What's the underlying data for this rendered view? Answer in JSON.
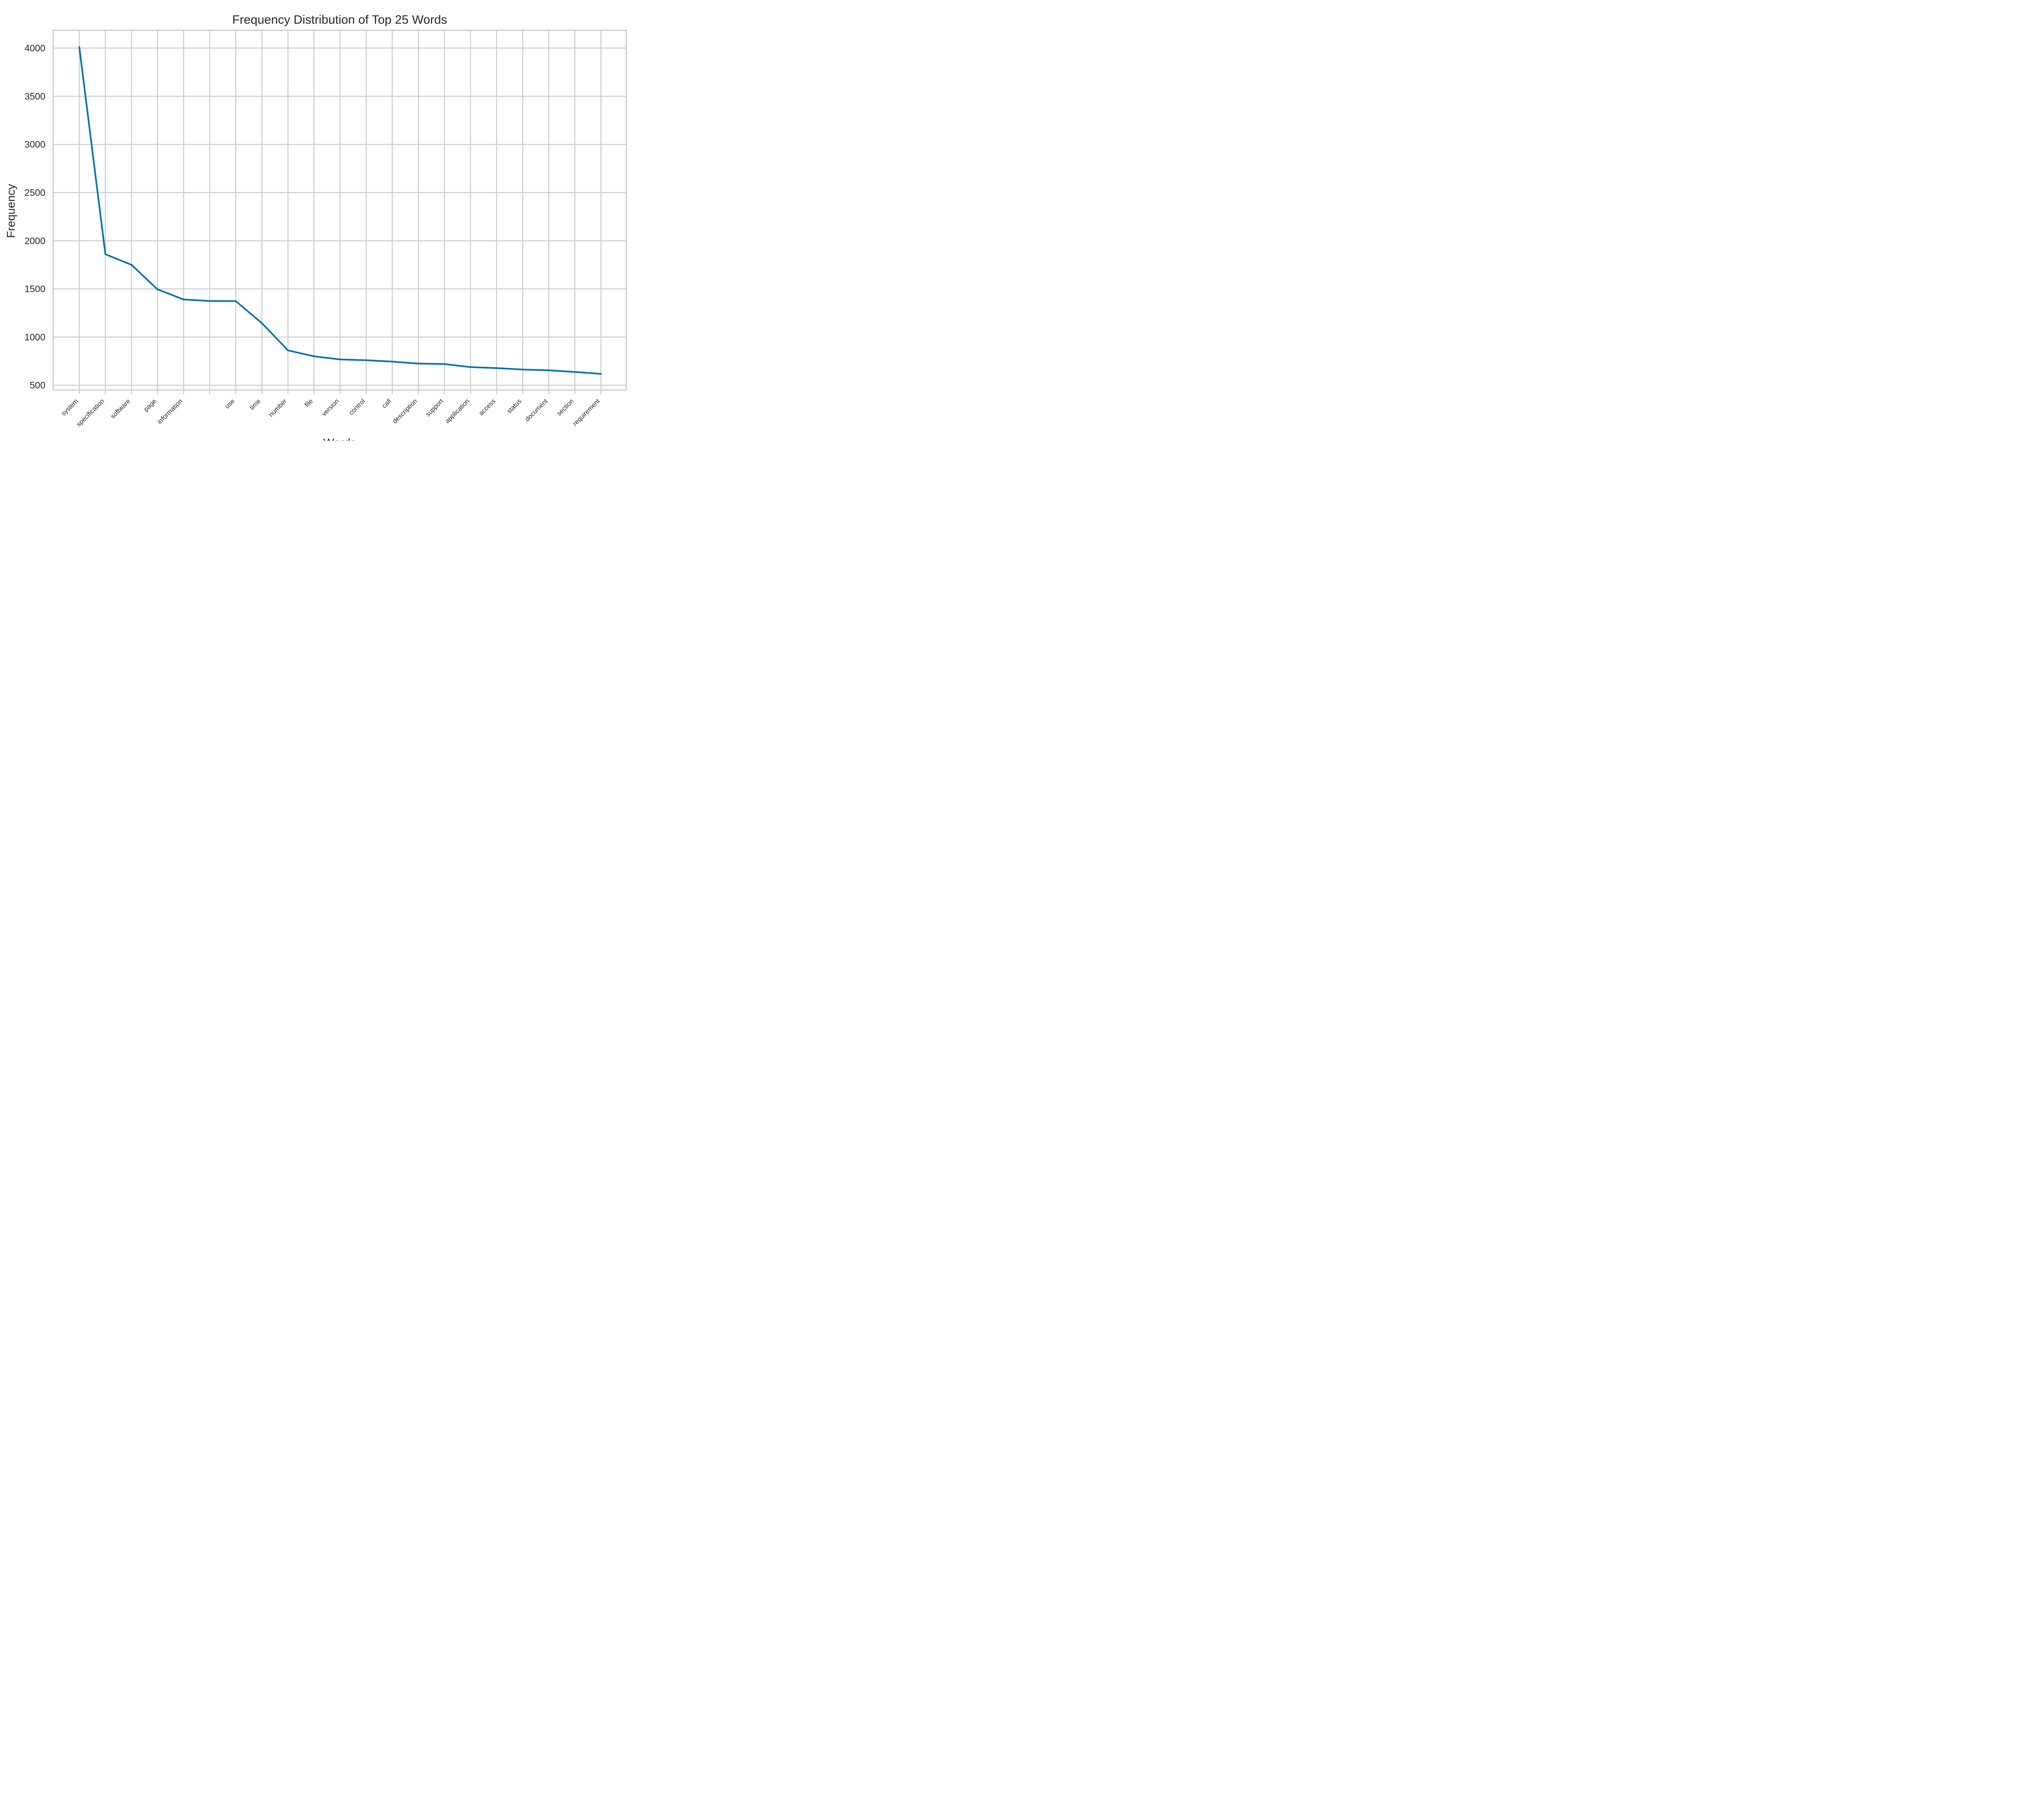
{
  "chart_data": {
    "type": "line",
    "title": "Frequency Distribution of Top 25 Words",
    "xlabel": "Words",
    "ylabel": "Frequency",
    "categories": [
      "system",
      "specification",
      "software",
      "page",
      "information",
      "",
      "use",
      "time",
      "number",
      "file",
      "version",
      "control",
      "call",
      "description",
      "support",
      "application",
      "access",
      "status",
      "document",
      "section",
      "requirement"
    ],
    "values": [
      4010,
      1860,
      1750,
      1495,
      1390,
      1375,
      1373,
      1145,
      862,
      800,
      768,
      760,
      745,
      725,
      720,
      688,
      678,
      663,
      655,
      638,
      618
    ],
    "yticks": [
      500,
      1000,
      1500,
      2000,
      2500,
      3000,
      3500,
      4000
    ],
    "ylim": [
      450,
      4185
    ],
    "grid": true,
    "legend": "none",
    "line_color": "#0072a2"
  }
}
